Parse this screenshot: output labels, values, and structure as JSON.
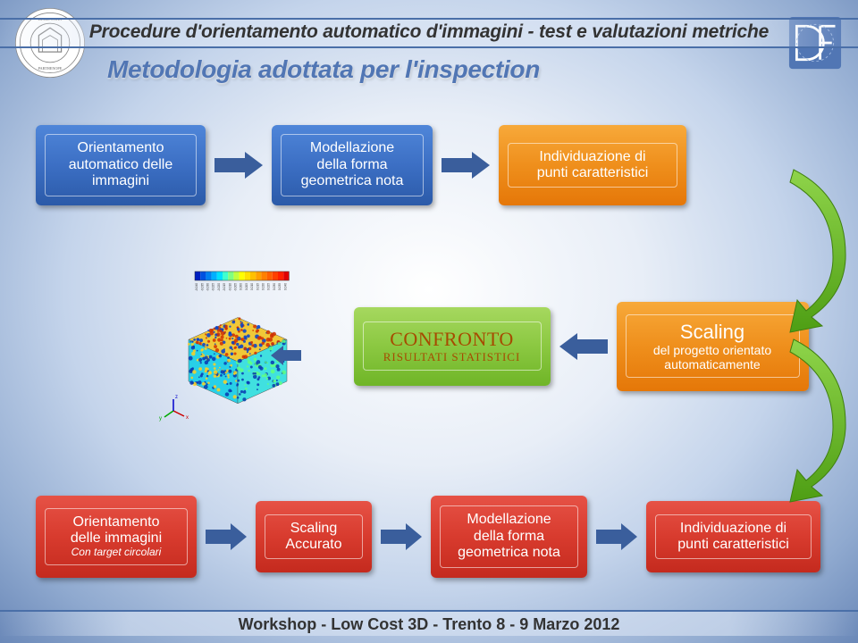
{
  "header": {
    "title": "Procedure d'orientamento automatico d'immagini - test e valutazioni metriche",
    "subtitle": "Metodologia adottata per l'inspection"
  },
  "footer": {
    "text": "Workshop - Low Cost 3D - Trento 8 - 9 Marzo 2012"
  },
  "colors": {
    "blue": "#3c6fc4",
    "orange": "#ef8f1c",
    "green": "#8bc841",
    "red": "#d83b2e",
    "arrow_blue": "#3a5e9c",
    "arrow_green": "#5fa824"
  },
  "row1": {
    "box1": {
      "line1": "Orientamento",
      "line2": "automatico delle",
      "line3": "immagini"
    },
    "box2": {
      "line1": "Modellazione",
      "line2": "della forma",
      "line3": "geometrica nota"
    },
    "box3": {
      "line1": "Individuazione di",
      "line2": "punti caratteristici"
    }
  },
  "row2": {
    "box1": {
      "title": "CONFRONTO",
      "sub": "RISULTATI STATISTICI"
    },
    "box2": {
      "line1": "Scaling",
      "line2": "del progetto orientato",
      "line3": "automaticamente"
    }
  },
  "row3": {
    "box1": {
      "line1": "Orientamento",
      "line2": "delle immagini",
      "line3": "Con target circolari"
    },
    "box2": {
      "line1": "Scaling",
      "line2": "Accurato"
    },
    "box3": {
      "line1": "Modellazione",
      "line2": "della forma",
      "line3": "geometrica nota"
    },
    "box4": {
      "line1": "Individuazione di",
      "line2": "punti caratteristici"
    }
  },
  "cube": {
    "legend_values": [
      "-0.040",
      "-0.035",
      "-0.030",
      "-0.025",
      "-0.020",
      "-0.015",
      "-0.010",
      "-0.005",
      "0.000",
      "0.005",
      "0.010",
      "0.015",
      "0.020",
      "0.025",
      "0.030",
      "0.035",
      "0.040"
    ],
    "legend_colors": [
      "#0020c0",
      "#0050e0",
      "#0080f0",
      "#00b0ff",
      "#00e0ff",
      "#40ffd0",
      "#80ff80",
      "#c0ff40",
      "#ffff00",
      "#ffe000",
      "#ffc000",
      "#ffa000",
      "#ff8000",
      "#ff6000",
      "#ff4000",
      "#ff2000",
      "#e00000"
    ]
  }
}
